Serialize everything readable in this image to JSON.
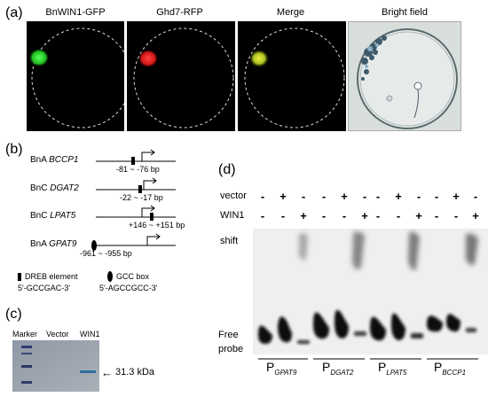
{
  "panel_a": {
    "letter": "(a)",
    "titles": [
      "BnWIN1-GFP",
      "Ghd7-RFP",
      "Merge",
      "Bright field"
    ]
  },
  "panel_b": {
    "letter": "(b)",
    "genes": [
      {
        "prefix": "BnA ",
        "name": "BCCP1",
        "range": "-81 ~ -76 bp"
      },
      {
        "prefix": "BnC ",
        "name": "DGAT2",
        "range": "-22 ~ -17 bp"
      },
      {
        "prefix": "BnC ",
        "name": "LPAT5",
        "range": "+146 ~ +151 bp"
      },
      {
        "prefix": "BnA ",
        "name": "GPAT9",
        "range": "-961 ~ -955 bp"
      }
    ],
    "legend": {
      "dreb_label": "DREB element",
      "dreb_seq": "5'-GCCGAC-3'",
      "gcc_label": "GCC box",
      "gcc_seq": "5'-AGCCGCC-3'"
    }
  },
  "panel_c": {
    "letter": "(c)",
    "lanes": [
      "Marker",
      "Vector",
      "WIN1"
    ],
    "band_label": "31.3 kDa"
  },
  "panel_d": {
    "letter": "(d)",
    "row_vector": "vector",
    "row_win1": "WIN1",
    "vector_signs": [
      "-",
      "+",
      "-",
      "-",
      "+",
      "-",
      "-",
      "+",
      "-",
      "-",
      "+",
      "-"
    ],
    "win1_signs": [
      "-",
      "-",
      "+",
      "-",
      "-",
      "+",
      "-",
      "-",
      "+",
      "-",
      "-",
      "+"
    ],
    "shift_label": "shift",
    "free_label": "Free\nprobe",
    "probes": [
      {
        "p": "P",
        "sub": "GPAT9"
      },
      {
        "p": "P",
        "sub": "DGAT2"
      },
      {
        "p": "P",
        "sub": "LPAT5"
      },
      {
        "p": "P",
        "sub": "BCCP1"
      }
    ]
  },
  "colors": {
    "gfp": "#2ed02e",
    "rfp": "#e02020",
    "merge": "#b8d030"
  }
}
